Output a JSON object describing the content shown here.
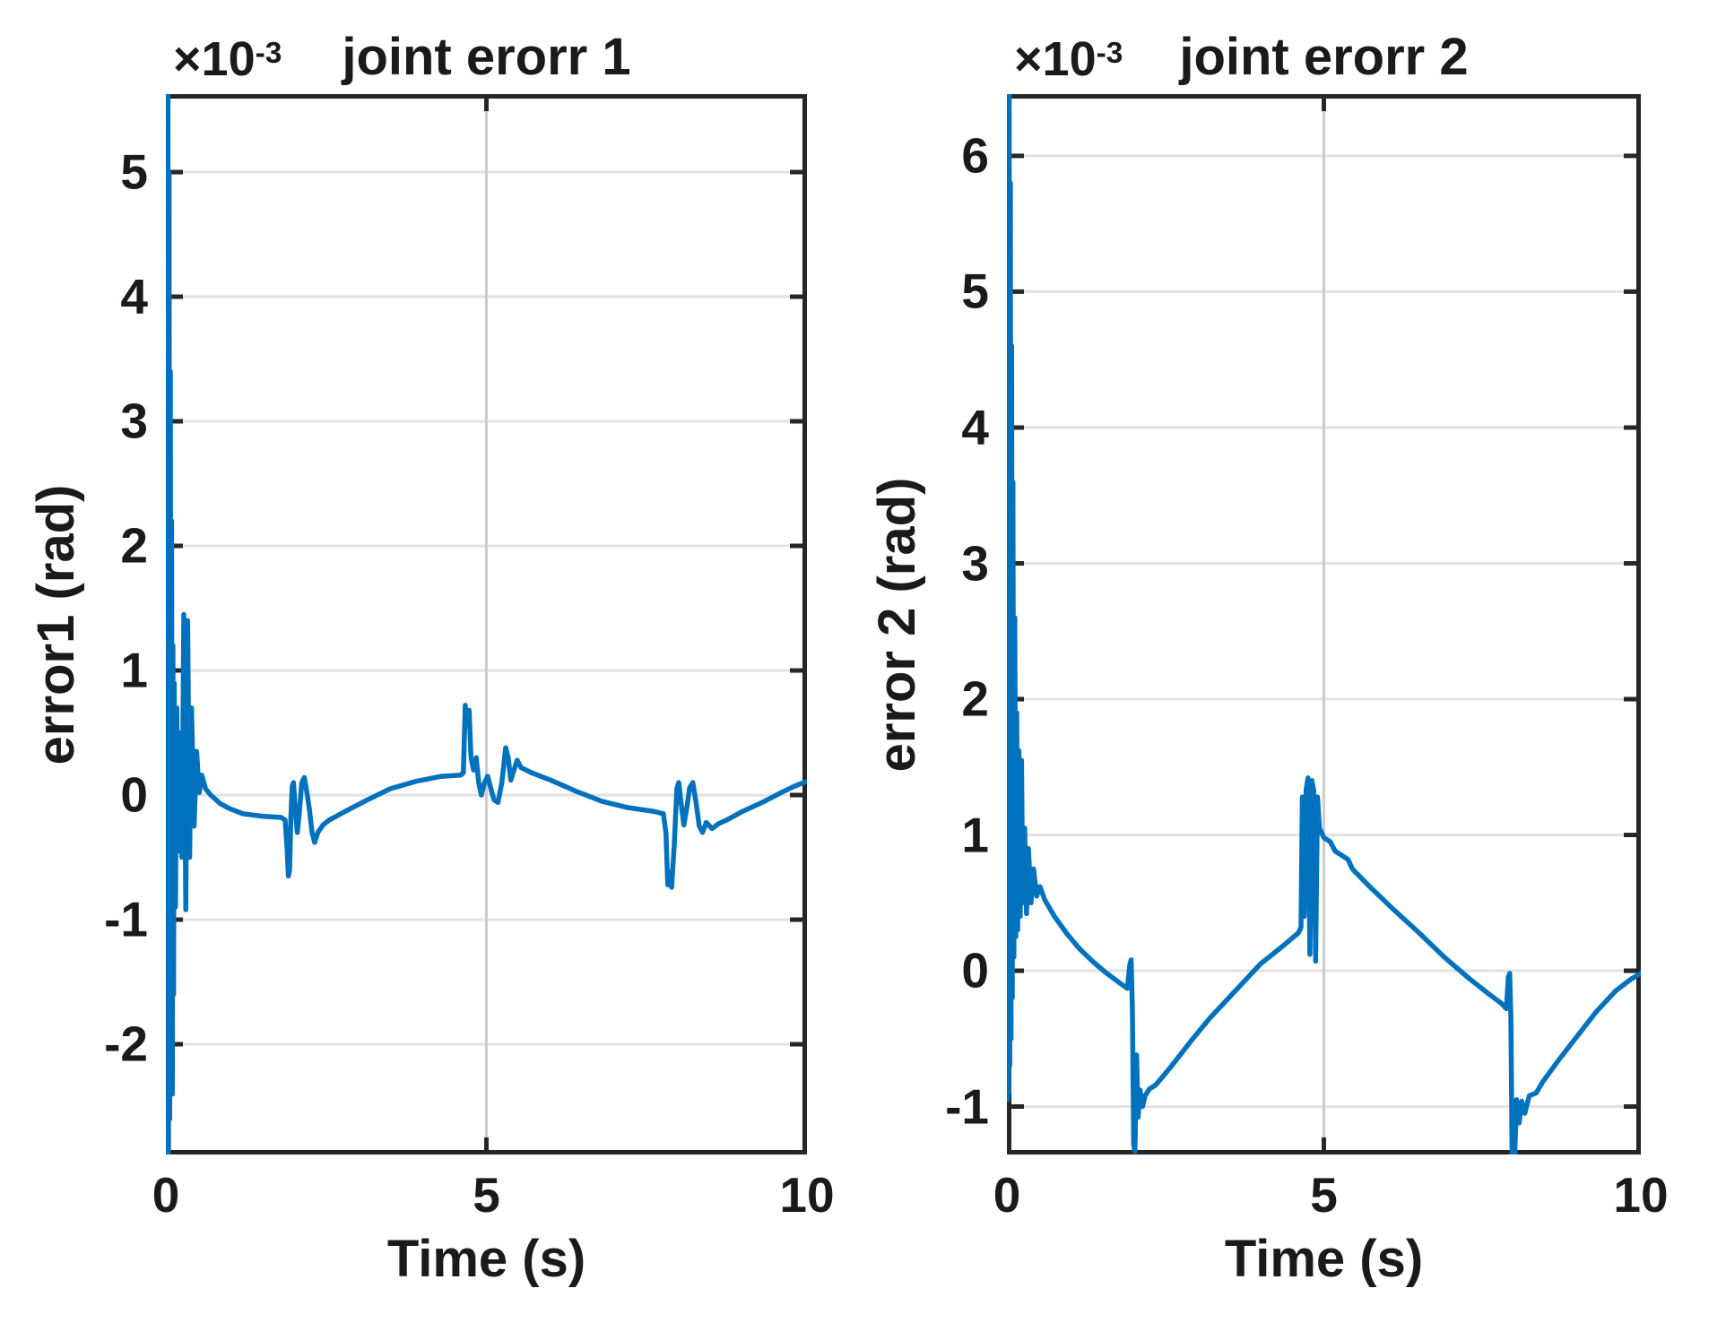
{
  "style": {
    "background": "#ffffff",
    "axis_color": "#262626",
    "grid_color": "#e2e2e2",
    "text_color": "#1a1a1a"
  },
  "chart_data": [
    {
      "type": "line",
      "title": "joint erorr 1",
      "y_scale": {
        "base": "×10",
        "power": "-3"
      },
      "xlabel": "Time (s)",
      "ylabel": "error1 (rad)",
      "xlim": [
        0,
        10
      ],
      "ylim": [
        -2.885,
        5.626
      ],
      "xticks": [
        0,
        5,
        10
      ],
      "yticks": [
        5,
        4,
        3,
        2,
        1,
        0,
        -1,
        -2
      ],
      "grid": true,
      "legend": "none",
      "line_color": "#0072bd",
      "y_unit_multiplier": 0.001,
      "series": [
        {
          "name": "error1",
          "points": [
            [
              0.0,
              0.0
            ],
            [
              0.005,
              5.9
            ],
            [
              0.012,
              -3.1
            ],
            [
              0.018,
              5.9
            ],
            [
              0.025,
              -3.1
            ],
            [
              0.032,
              5.9
            ],
            [
              0.04,
              -3.1
            ],
            [
              0.05,
              5.0
            ],
            [
              0.06,
              -2.6
            ],
            [
              0.07,
              3.4
            ],
            [
              0.08,
              -1.8
            ],
            [
              0.09,
              2.2
            ],
            [
              0.1,
              -2.4
            ],
            [
              0.11,
              1.2
            ],
            [
              0.12,
              -1.6
            ],
            [
              0.13,
              0.9
            ],
            [
              0.15,
              -0.9
            ],
            [
              0.17,
              0.7
            ],
            [
              0.19,
              -0.45
            ],
            [
              0.21,
              0.5
            ],
            [
              0.25,
              -0.5
            ],
            [
              0.28,
              1.45
            ],
            [
              0.31,
              -0.92
            ],
            [
              0.34,
              1.4
            ],
            [
              0.37,
              -0.5
            ],
            [
              0.4,
              0.7
            ],
            [
              0.44,
              -0.25
            ],
            [
              0.48,
              0.35
            ],
            [
              0.52,
              0.02
            ],
            [
              0.56,
              0.16
            ],
            [
              0.62,
              0.05
            ],
            [
              0.7,
              0.0
            ],
            [
              0.85,
              -0.07
            ],
            [
              1.0,
              -0.11
            ],
            [
              1.2,
              -0.15
            ],
            [
              1.5,
              -0.17
            ],
            [
              1.8,
              -0.18
            ],
            [
              1.86,
              -0.2
            ],
            [
              1.89,
              -0.42
            ],
            [
              1.91,
              -0.65
            ],
            [
              1.93,
              -0.6
            ],
            [
              1.95,
              -0.18
            ],
            [
              1.97,
              0.07
            ],
            [
              1.99,
              0.1
            ],
            [
              2.02,
              -0.12
            ],
            [
              2.05,
              -0.3
            ],
            [
              2.08,
              -0.15
            ],
            [
              2.12,
              0.1
            ],
            [
              2.16,
              0.14
            ],
            [
              2.2,
              0.02
            ],
            [
              2.24,
              -0.12
            ],
            [
              2.28,
              -0.3
            ],
            [
              2.32,
              -0.38
            ],
            [
              2.37,
              -0.3
            ],
            [
              2.45,
              -0.24
            ],
            [
              2.55,
              -0.2
            ],
            [
              2.8,
              -0.13
            ],
            [
              3.1,
              -0.05
            ],
            [
              3.5,
              0.05
            ],
            [
              3.9,
              0.11
            ],
            [
              4.3,
              0.15
            ],
            [
              4.6,
              0.16
            ],
            [
              4.64,
              0.18
            ],
            [
              4.67,
              0.72
            ],
            [
              4.7,
              0.55
            ],
            [
              4.73,
              0.68
            ],
            [
              4.76,
              0.3
            ],
            [
              4.8,
              0.2
            ],
            [
              4.84,
              0.3
            ],
            [
              4.88,
              0.1
            ],
            [
              4.92,
              0.0
            ],
            [
              4.97,
              0.1
            ],
            [
              5.02,
              0.15
            ],
            [
              5.07,
              0.05
            ],
            [
              5.12,
              -0.04
            ],
            [
              5.18,
              -0.06
            ],
            [
              5.24,
              0.1
            ],
            [
              5.3,
              0.38
            ],
            [
              5.34,
              0.3
            ],
            [
              5.38,
              0.12
            ],
            [
              5.43,
              0.2
            ],
            [
              5.48,
              0.28
            ],
            [
              5.54,
              0.22
            ],
            [
              5.7,
              0.18
            ],
            [
              6.0,
              0.12
            ],
            [
              6.4,
              0.03
            ],
            [
              6.8,
              -0.05
            ],
            [
              7.2,
              -0.1
            ],
            [
              7.6,
              -0.13
            ],
            [
              7.76,
              -0.15
            ],
            [
              7.8,
              -0.3
            ],
            [
              7.83,
              -0.72
            ],
            [
              7.86,
              -0.62
            ],
            [
              7.89,
              -0.74
            ],
            [
              7.93,
              -0.4
            ],
            [
              7.97,
              0.05
            ],
            [
              8.0,
              0.1
            ],
            [
              8.04,
              -0.08
            ],
            [
              8.08,
              -0.24
            ],
            [
              8.12,
              -0.12
            ],
            [
              8.17,
              0.06
            ],
            [
              8.22,
              0.1
            ],
            [
              8.27,
              -0.06
            ],
            [
              8.32,
              -0.25
            ],
            [
              8.37,
              -0.3
            ],
            [
              8.43,
              -0.22
            ],
            [
              8.52,
              -0.27
            ],
            [
              8.62,
              -0.23
            ],
            [
              8.75,
              -0.2
            ],
            [
              9.0,
              -0.13
            ],
            [
              9.3,
              -0.06
            ],
            [
              9.6,
              0.02
            ],
            [
              9.8,
              0.07
            ],
            [
              10.0,
              0.11
            ]
          ]
        }
      ]
    },
    {
      "type": "line",
      "title": "joint erorr 2",
      "y_scale": {
        "base": "×10",
        "power": "-3"
      },
      "xlabel": "Time (s)",
      "ylabel": "error 2 (rad)",
      "xlim": [
        0,
        10
      ],
      "ylim": [
        -1.353,
        6.455
      ],
      "xticks": [
        0,
        5,
        10
      ],
      "yticks": [
        6,
        5,
        4,
        3,
        2,
        1,
        0,
        -1
      ],
      "grid": true,
      "legend": "none",
      "line_color": "#0072bd",
      "y_unit_multiplier": 0.001,
      "series": [
        {
          "name": "error2",
          "points": [
            [
              0.0,
              0.0
            ],
            [
              0.006,
              6.8
            ],
            [
              0.013,
              -0.95
            ],
            [
              0.02,
              6.8
            ],
            [
              0.028,
              -0.9
            ],
            [
              0.036,
              6.8
            ],
            [
              0.045,
              -0.7
            ],
            [
              0.055,
              5.8
            ],
            [
              0.065,
              -0.5
            ],
            [
              0.075,
              4.6
            ],
            [
              0.085,
              -0.2
            ],
            [
              0.095,
              3.6
            ],
            [
              0.11,
              0.1
            ],
            [
              0.125,
              2.6
            ],
            [
              0.14,
              0.25
            ],
            [
              0.155,
              1.9
            ],
            [
              0.17,
              0.3
            ],
            [
              0.19,
              1.62
            ],
            [
              0.21,
              0.4
            ],
            [
              0.23,
              1.55
            ],
            [
              0.25,
              0.5
            ],
            [
              0.28,
              1.05
            ],
            [
              0.31,
              0.42
            ],
            [
              0.34,
              0.9
            ],
            [
              0.38,
              0.5
            ],
            [
              0.42,
              0.75
            ],
            [
              0.47,
              0.55
            ],
            [
              0.52,
              0.62
            ],
            [
              0.6,
              0.52
            ],
            [
              0.75,
              0.4
            ],
            [
              0.95,
              0.27
            ],
            [
              1.15,
              0.16
            ],
            [
              1.35,
              0.07
            ],
            [
              1.55,
              -0.01
            ],
            [
              1.75,
              -0.08
            ],
            [
              1.9,
              -0.13
            ],
            [
              1.94,
              0.05
            ],
            [
              1.96,
              0.08
            ],
            [
              1.98,
              -0.3
            ],
            [
              2.0,
              -1.28
            ],
            [
              2.02,
              -1.33
            ],
            [
              2.045,
              -0.62
            ],
            [
              2.07,
              -1.08
            ],
            [
              2.1,
              -0.88
            ],
            [
              2.14,
              -1.0
            ],
            [
              2.18,
              -0.92
            ],
            [
              2.25,
              -0.87
            ],
            [
              2.35,
              -0.84
            ],
            [
              2.6,
              -0.7
            ],
            [
              2.9,
              -0.52
            ],
            [
              3.2,
              -0.35
            ],
            [
              3.6,
              -0.15
            ],
            [
              4.0,
              0.05
            ],
            [
              4.35,
              0.18
            ],
            [
              4.6,
              0.28
            ],
            [
              4.64,
              0.32
            ],
            [
              4.66,
              1.28
            ],
            [
              4.69,
              0.4
            ],
            [
              4.72,
              1.33
            ],
            [
              4.75,
              1.42
            ],
            [
              4.78,
              0.12
            ],
            [
              4.81,
              1.4
            ],
            [
              4.84,
              1.33
            ],
            [
              4.87,
              0.07
            ],
            [
              4.9,
              1.28
            ],
            [
              4.93,
              1.05
            ],
            [
              5.0,
              0.98
            ],
            [
              5.1,
              0.95
            ],
            [
              5.18,
              0.88
            ],
            [
              5.28,
              0.85
            ],
            [
              5.38,
              0.82
            ],
            [
              5.45,
              0.75
            ],
            [
              5.7,
              0.63
            ],
            [
              6.1,
              0.45
            ],
            [
              6.5,
              0.28
            ],
            [
              6.9,
              0.1
            ],
            [
              7.3,
              -0.06
            ],
            [
              7.6,
              -0.17
            ],
            [
              7.8,
              -0.24
            ],
            [
              7.88,
              -0.28
            ],
            [
              7.91,
              -0.05
            ],
            [
              7.93,
              -0.02
            ],
            [
              7.95,
              -0.35
            ],
            [
              7.97,
              -1.42
            ],
            [
              7.99,
              -1.1
            ],
            [
              8.01,
              -1.38
            ],
            [
              8.04,
              -0.95
            ],
            [
              8.08,
              -1.12
            ],
            [
              8.12,
              -0.96
            ],
            [
              8.17,
              -1.05
            ],
            [
              8.24,
              -0.92
            ],
            [
              8.35,
              -0.9
            ],
            [
              8.45,
              -0.82
            ],
            [
              8.7,
              -0.66
            ],
            [
              9.0,
              -0.48
            ],
            [
              9.3,
              -0.3
            ],
            [
              9.6,
              -0.15
            ],
            [
              9.85,
              -0.06
            ],
            [
              10.0,
              -0.02
            ]
          ]
        }
      ]
    }
  ]
}
